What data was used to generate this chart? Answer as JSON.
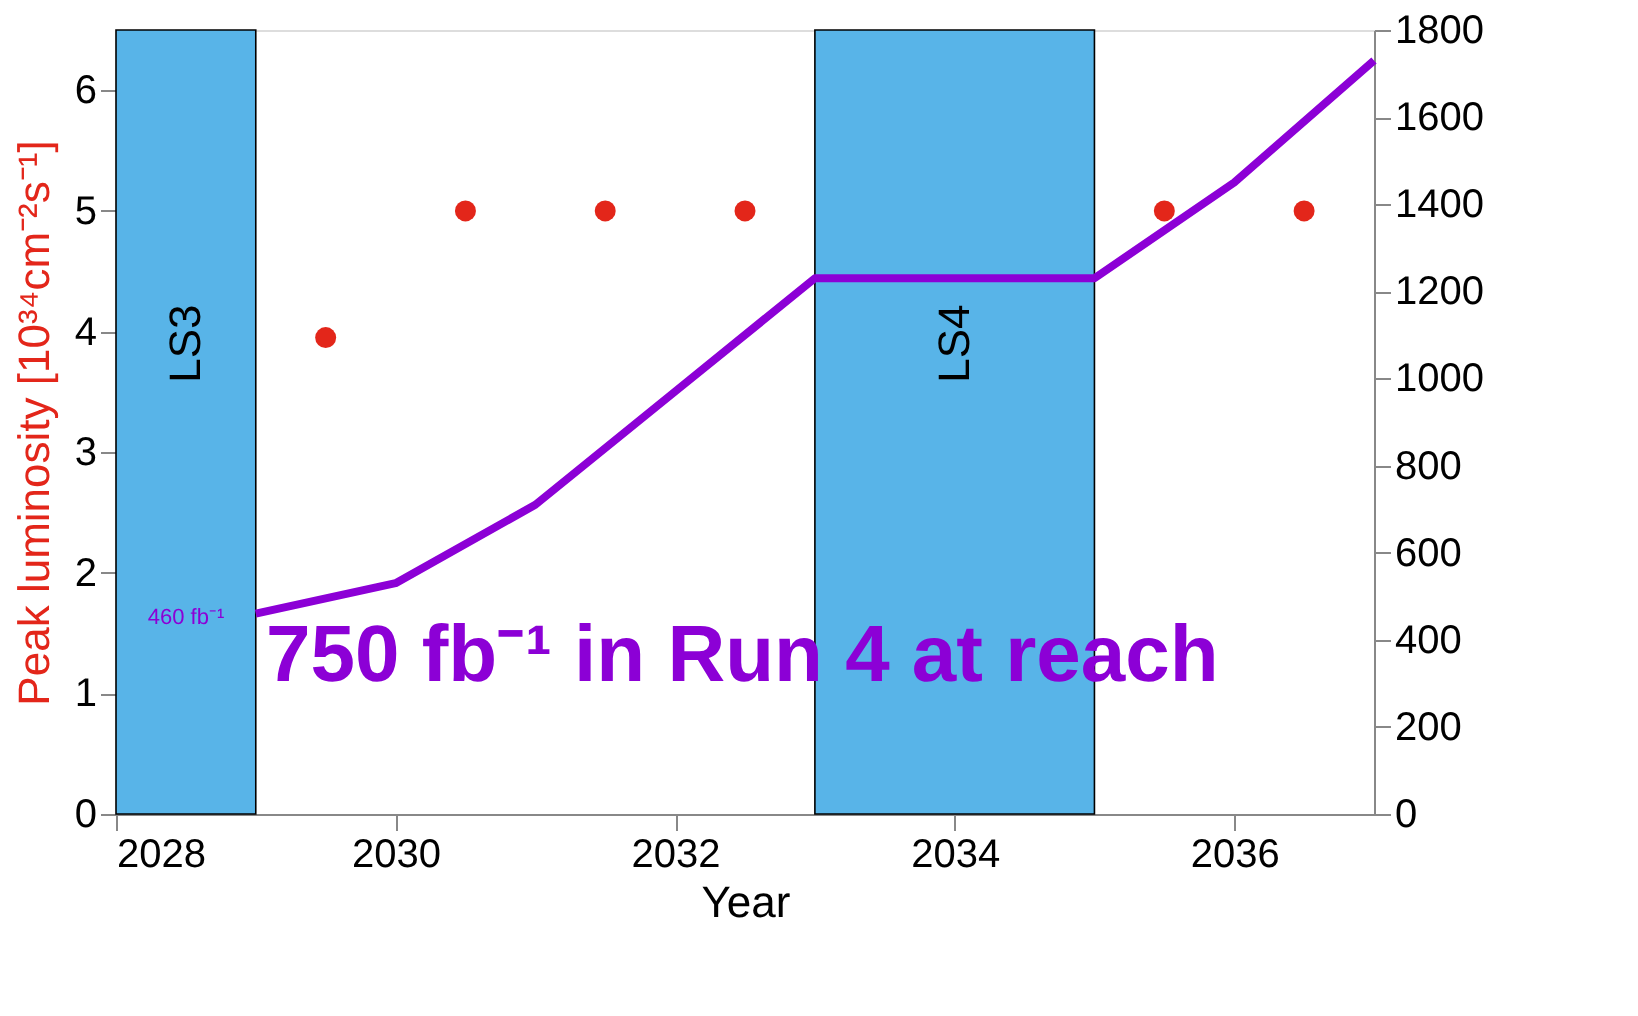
{
  "chart_data": {
    "type": "line",
    "xlabel": "Year",
    "ylabel": "Peak luminosity [10³⁴cm⁻²s⁻¹]",
    "xlim": [
      2028,
      2037
    ],
    "xticks": [
      2028,
      2030,
      2032,
      2034,
      2036
    ],
    "ylim": [
      0,
      6.5
    ],
    "yticks": [
      0,
      1,
      2,
      3,
      4,
      5,
      6
    ],
    "y2lim": [
      0,
      1800
    ],
    "y2ticks": [
      0,
      200,
      400,
      600,
      800,
      1000,
      1200,
      1400,
      1600,
      1800
    ],
    "grid": false,
    "series": [
      {
        "type": "scatter",
        "marker": "circle",
        "color": "#e3261a",
        "x": [
          2029.5,
          2030.5,
          2031.5,
          2032.5,
          2035.5,
          2036.5
        ],
        "values": [
          3.95,
          5,
          5,
          5,
          5,
          5
        ]
      },
      {
        "axis": "y2",
        "line_style": "solid",
        "color": "#8c00d6",
        "x": [
          2029,
          2030,
          2031,
          2032,
          2033,
          2034,
          2035,
          2036,
          2037
        ],
        "values": [
          460,
          530,
          710,
          970,
          1230,
          1230,
          1230,
          1450,
          1730
        ]
      }
    ],
    "bands": [
      {
        "axis": "x",
        "from": 2028,
        "to": 2029,
        "label": "LS3",
        "color": "#58b4e8"
      },
      {
        "axis": "x",
        "from": 2033,
        "to": 2035,
        "label": "LS4",
        "color": "#58b4e8"
      }
    ],
    "annotations": [
      "460 fb⁻¹",
      "750 fb⁻¹ in Run 4 at reach"
    ]
  }
}
